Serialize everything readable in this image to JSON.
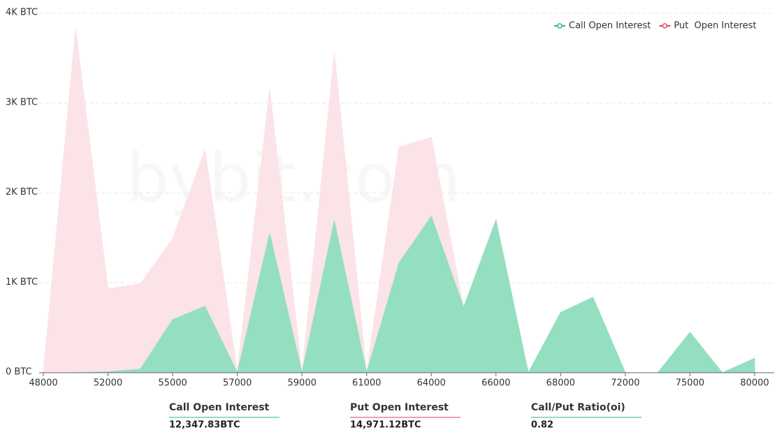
{
  "chart_data": {
    "type": "area",
    "watermark": "bybit.com",
    "categories": [
      "48000",
      null,
      "52000",
      null,
      "55000",
      null,
      "57000",
      null,
      "59000",
      null,
      "61000",
      null,
      "64000",
      null,
      "66000",
      null,
      "68000",
      null,
      "72000",
      null,
      "75000",
      null,
      "80000"
    ],
    "series": [
      {
        "name": "Put  Open Interest",
        "color": "#e0455a",
        "fill": "#fbe3e7",
        "values": [
          0,
          3830,
          930,
          990,
          1490,
          2480,
          0,
          3160,
          0,
          3560,
          0,
          2510,
          2620,
          720,
          0,
          0,
          0,
          0,
          0,
          0,
          0,
          0,
          0
        ]
      },
      {
        "name": "Call Open Interest",
        "color": "#2fb585",
        "fill": "#95dfc1",
        "values": [
          0,
          0,
          10,
          40,
          590,
          740,
          0,
          1550,
          0,
          1690,
          0,
          1220,
          1740,
          730,
          1700,
          0,
          670,
          840,
          0,
          0,
          450,
          0,
          160
        ]
      }
    ],
    "ylim": [
      0,
      4000
    ],
    "yticks": [
      {
        "value": 0,
        "label": "0 BTC"
      },
      {
        "value": 1000,
        "label": "1K BTC"
      },
      {
        "value": 2000,
        "label": "2K BTC"
      },
      {
        "value": 3000,
        "label": "3K BTC"
      },
      {
        "value": 4000,
        "label": "4K BTC"
      }
    ],
    "grid": true,
    "legend": "top-right"
  },
  "summary": [
    {
      "label": "Call Open Interest",
      "value": "12,347.83BTC",
      "color": "#2fb585"
    },
    {
      "label": "Put Open Interest",
      "value": "14,971.12BTC",
      "color": "#e0455a"
    },
    {
      "label": "Call/Put Ratio(oi)",
      "value": "0.82",
      "color": "#2fb585"
    }
  ]
}
